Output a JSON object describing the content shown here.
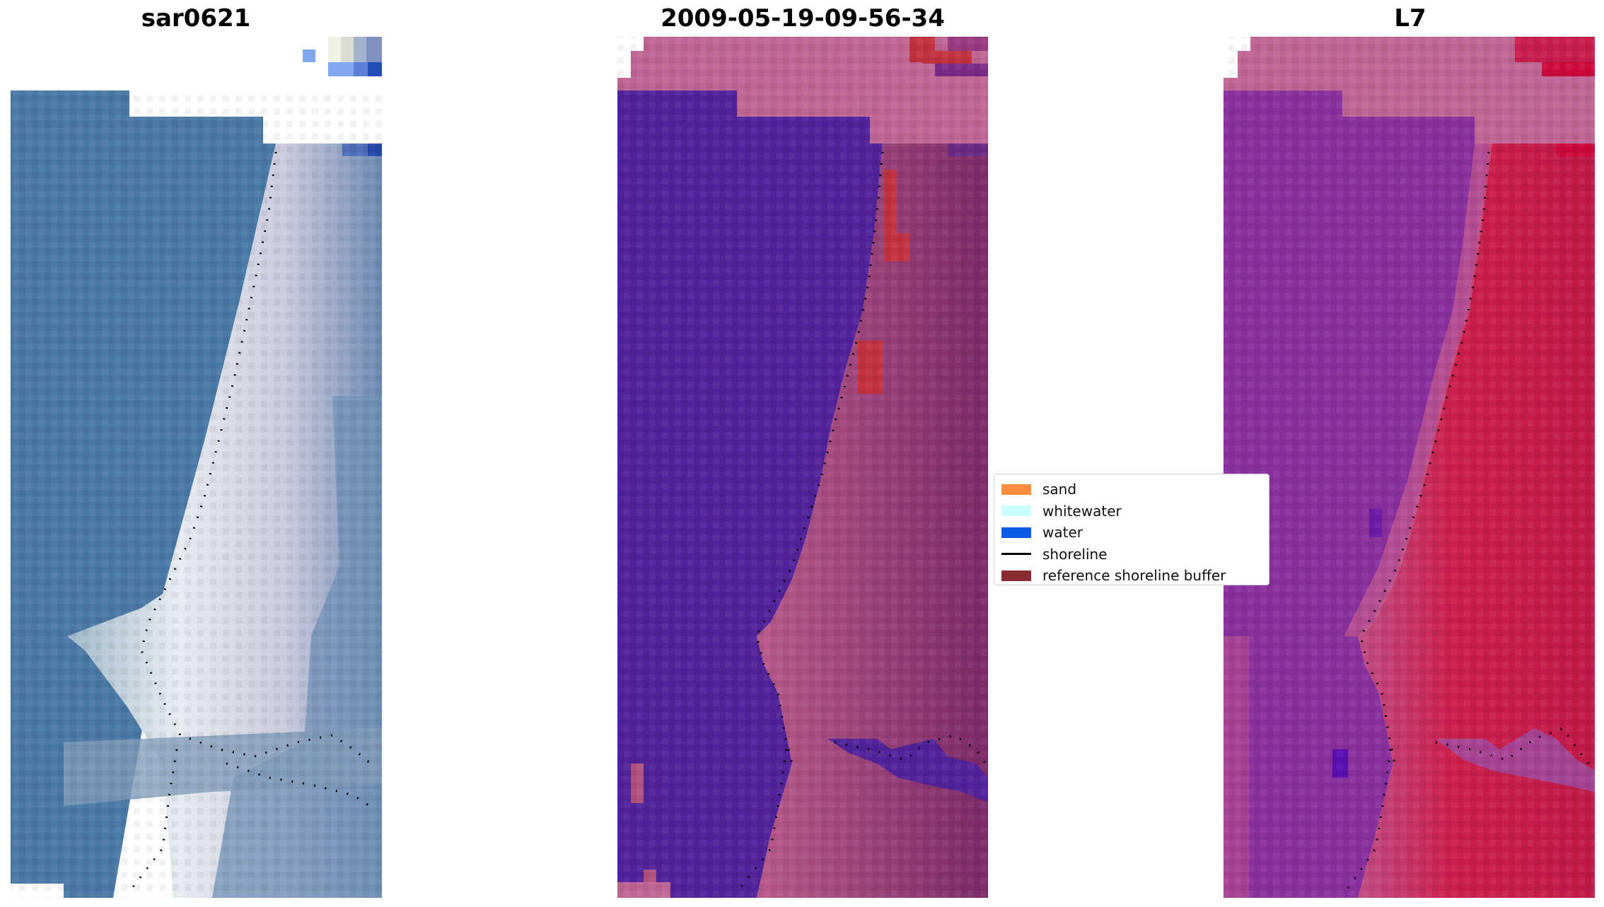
{
  "panels": {
    "left": {
      "title": "sar0621"
    },
    "middle": {
      "title": "2009-05-19-09-56-34"
    },
    "right": {
      "title": "L7"
    }
  },
  "legend": {
    "items": [
      {
        "label": "sand",
        "kind": "patch",
        "color": "#ff8c3c"
      },
      {
        "label": "whitewater",
        "kind": "patch",
        "color": "#c8ffff"
      },
      {
        "label": "water",
        "kind": "patch",
        "color": "#0a5ae6"
      },
      {
        "label": "shoreline",
        "kind": "line",
        "color": "#000000"
      },
      {
        "label": "reference shoreline buffer",
        "kind": "patch",
        "color": "#8b2c34"
      }
    ]
  },
  "colors": {
    "sea_rgb": "#4a79a6",
    "beach_rgb": "#d8dde8",
    "classified_water": "#52239a",
    "classified_land": "#b0527e",
    "classified_buffer": "#c3333f",
    "index_water": "#8a2f9e",
    "index_land": "#c81e4e",
    "nodata_pink": "#bf6694"
  }
}
